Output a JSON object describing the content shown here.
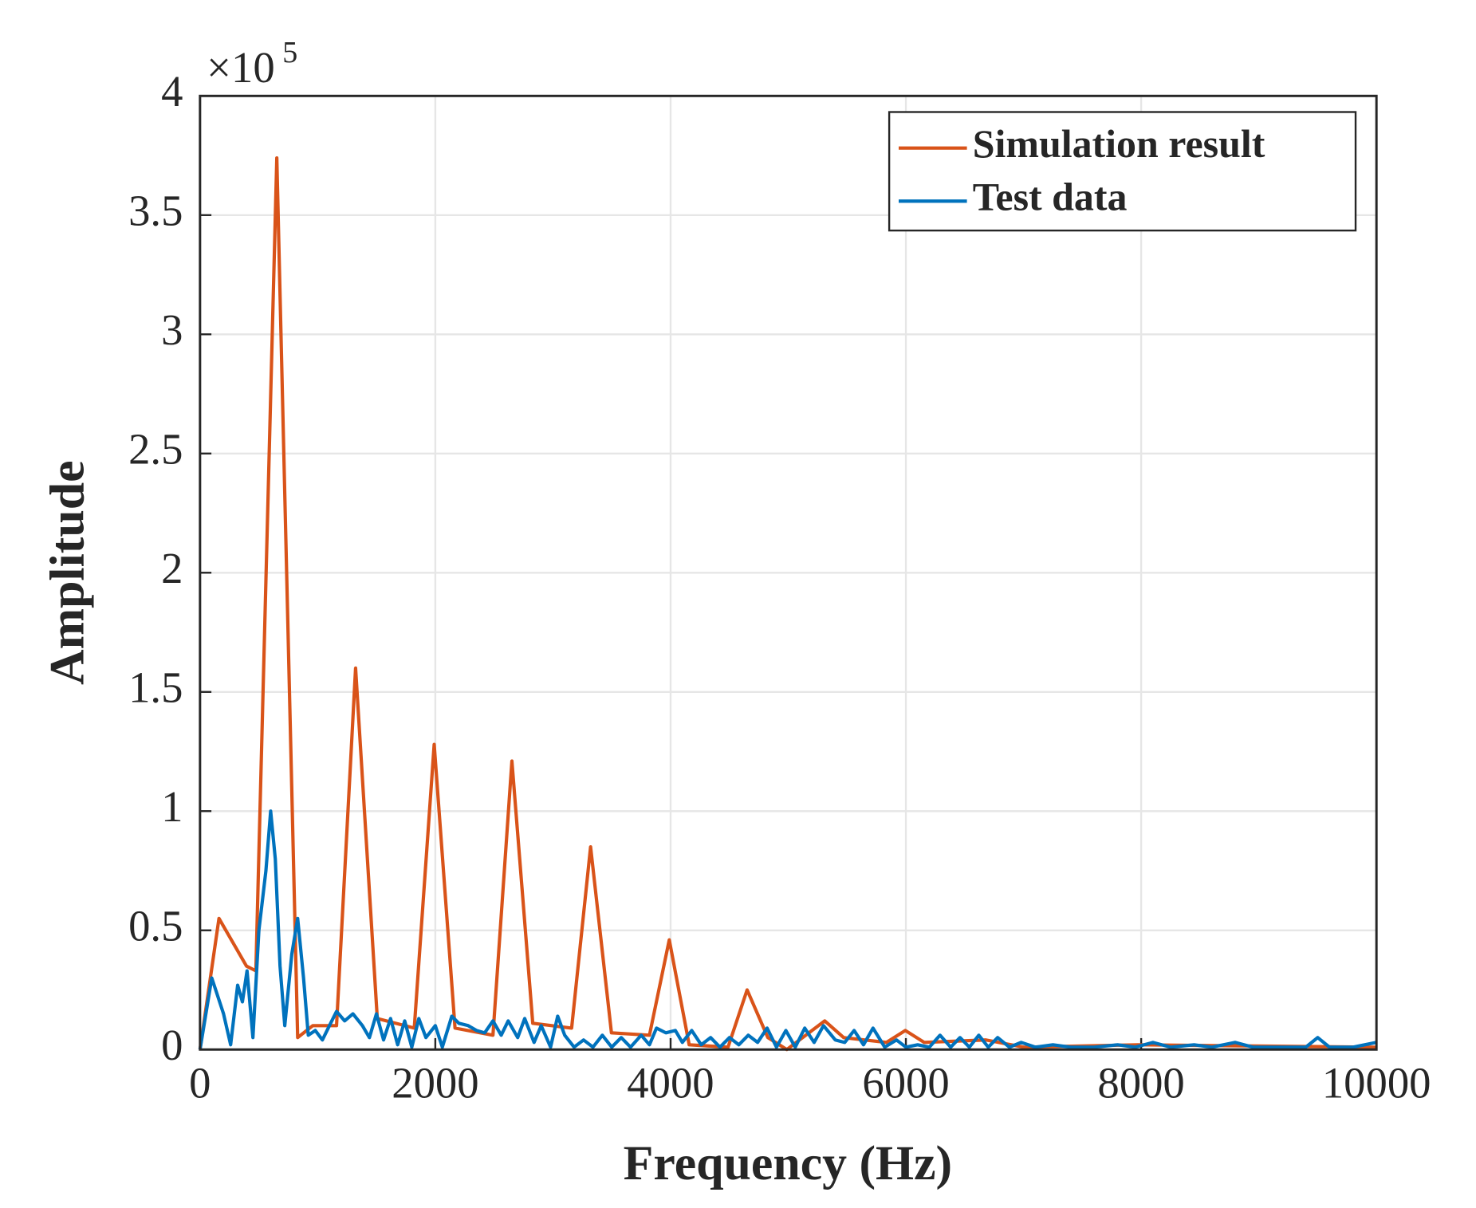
{
  "chart_data": {
    "type": "line",
    "xlabel": "Frequency (Hz)",
    "ylabel": "Amplitude",
    "y_multiplier": {
      "base": "×10",
      "exponent": "5"
    },
    "xlim": [
      0,
      10000
    ],
    "xticks": [
      0,
      2000,
      4000,
      6000,
      8000,
      10000
    ],
    "ylim": [
      0,
      4
    ],
    "yticks": [
      0,
      0.5,
      1,
      1.5,
      2,
      2.5,
      3,
      3.5,
      4
    ],
    "grid": true,
    "legend": "northeast",
    "series": [
      {
        "name": "Simulation result",
        "color": "#d95319",
        "x": [
          0,
          161,
          395,
          475,
          653,
          830,
          959,
          1160,
          1322,
          1507,
          1821,
          1990,
          2168,
          2490,
          2651,
          2828,
          3159,
          3320,
          3497,
          3820,
          3989,
          4158,
          4488,
          4650,
          4827,
          4988,
          5310,
          5471,
          5834,
          5995,
          6156,
          6680,
          7002,
          7969,
          9984,
          10000
        ],
        "values": [
          0,
          0.55,
          0.35,
          0.33,
          3.74,
          0.05,
          0.1,
          0.1,
          1.6,
          0.13,
          0.09,
          1.28,
          0.09,
          0.06,
          1.21,
          0.11,
          0.09,
          0.85,
          0.07,
          0.06,
          0.46,
          0.02,
          0.01,
          0.25,
          0.05,
          0,
          0.12,
          0.05,
          0.03,
          0.08,
          0.03,
          0.04,
          0.01,
          0.02,
          0.01,
          0.01
        ]
      },
      {
        "name": "Test data",
        "color": "#0072bd",
        "x": [
          0,
          100,
          200,
          260,
          320,
          360,
          400,
          450,
          500,
          560,
          600,
          640,
          680,
          720,
          780,
          830,
          880,
          920,
          980,
          1040,
          1100,
          1160,
          1230,
          1300,
          1380,
          1440,
          1500,
          1560,
          1620,
          1680,
          1740,
          1800,
          1860,
          1920,
          2000,
          2060,
          2140,
          2200,
          2280,
          2350,
          2420,
          2490,
          2560,
          2620,
          2700,
          2760,
          2840,
          2900,
          2980,
          3040,
          3100,
          3180,
          3260,
          3340,
          3420,
          3500,
          3580,
          3660,
          3750,
          3820,
          3880,
          3960,
          4040,
          4100,
          4180,
          4260,
          4340,
          4420,
          4500,
          4580,
          4660,
          4740,
          4820,
          4900,
          4980,
          5060,
          5140,
          5220,
          5300,
          5400,
          5480,
          5560,
          5640,
          5720,
          5820,
          5920,
          6000,
          6100,
          6200,
          6290,
          6380,
          6460,
          6540,
          6620,
          6700,
          6780,
          6880,
          6980,
          7100,
          7250,
          7400,
          7600,
          7800,
          7950,
          8100,
          8250,
          8450,
          8600,
          8800,
          8950,
          9200,
          9400,
          9500,
          9600,
          9800,
          9900,
          10000
        ],
        "values": [
          0,
          0.3,
          0.15,
          0.02,
          0.27,
          0.2,
          0.33,
          0.05,
          0.5,
          0.75,
          1.0,
          0.8,
          0.35,
          0.1,
          0.4,
          0.55,
          0.3,
          0.06,
          0.08,
          0.04,
          0.1,
          0.16,
          0.12,
          0.15,
          0.1,
          0.05,
          0.15,
          0.04,
          0.13,
          0.02,
          0.12,
          0.01,
          0.13,
          0.05,
          0.1,
          0.01,
          0.14,
          0.11,
          0.1,
          0.08,
          0.07,
          0.12,
          0.06,
          0.12,
          0.05,
          0.13,
          0.03,
          0.1,
          0.01,
          0.14,
          0.06,
          0.01,
          0.04,
          0.01,
          0.06,
          0.01,
          0.05,
          0.01,
          0.06,
          0.02,
          0.09,
          0.07,
          0.08,
          0.03,
          0.08,
          0.02,
          0.05,
          0.01,
          0.05,
          0.02,
          0.06,
          0.03,
          0.09,
          0.01,
          0.08,
          0.01,
          0.09,
          0.03,
          0.1,
          0.04,
          0.03,
          0.08,
          0.02,
          0.09,
          0.01,
          0.04,
          0.01,
          0.02,
          0.01,
          0.06,
          0.01,
          0.05,
          0.01,
          0.06,
          0.01,
          0.05,
          0.01,
          0.03,
          0.01,
          0.02,
          0.01,
          0.01,
          0.02,
          0.01,
          0.03,
          0.01,
          0.02,
          0.01,
          0.03,
          0.01,
          0.01,
          0.01,
          0.05,
          0.01,
          0.01,
          0.02,
          0.03
        ]
      }
    ]
  }
}
